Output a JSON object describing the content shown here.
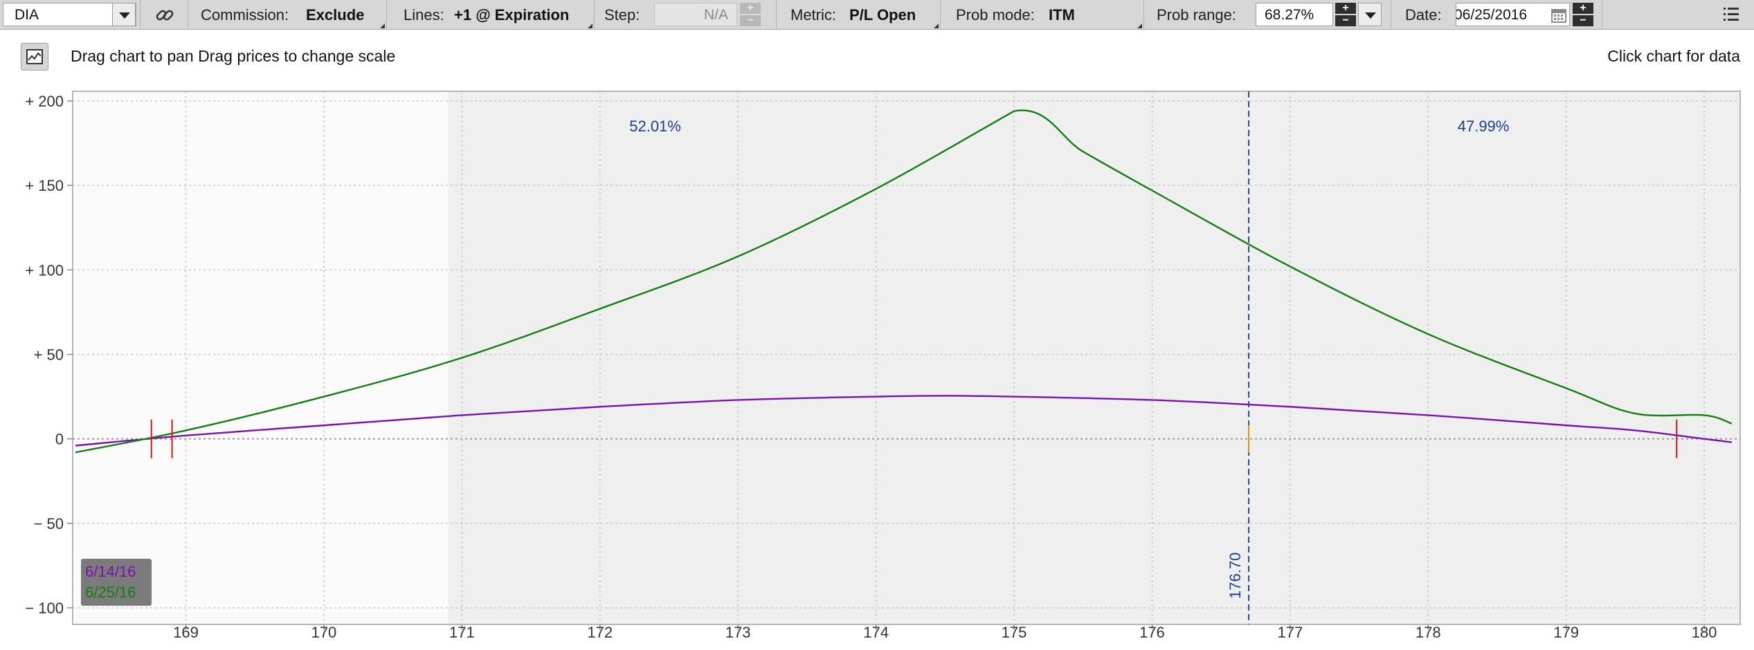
{
  "toolbar": {
    "symbol": "DIA",
    "commission_label": "Commission:",
    "commission_value": "Exclude",
    "lines_label": "Lines:",
    "lines_value": "+1 @ Expiration",
    "step_label": "Step:",
    "step_value": "N/A",
    "metric_label": "Metric:",
    "metric_value": "P/L Open",
    "prob_mode_label": "Prob mode:",
    "prob_mode_value": "ITM",
    "prob_range_label": "Prob range:",
    "prob_range_value": "68.27%",
    "date_label": "Date:",
    "date_value": "06/25/2016",
    "link_icon": "link-icon",
    "menu_icon": "hamburger-menu-icon",
    "calendar_icon": "calendar-icon"
  },
  "info": {
    "left_text": "Drag chart to pan Drag prices to change scale",
    "right_text": "Click chart for data",
    "chart_icon": "chart-type-icon"
  },
  "colors": {
    "series_6_14": "#7a10b4",
    "series_6_25": "#137d13",
    "price_line": "#1b4f8c",
    "breakeven_marker": "#e01010",
    "prob_region": "#efefef"
  },
  "chart_data": {
    "type": "line",
    "xlim": [
      168.2,
      180.2
    ],
    "ylim": [
      -100,
      200
    ],
    "x_ticks": [
      169,
      170,
      171,
      172,
      173,
      174,
      175,
      176,
      177,
      178,
      179,
      180
    ],
    "y_ticks": [
      200,
      150,
      100,
      50,
      0,
      -50,
      -100
    ],
    "y_tick_labels": [
      "+ 200",
      "+ 150",
      "+ 100",
      "+ 50",
      "0",
      "− 50",
      "− 100"
    ],
    "current_price": 176.7,
    "current_price_label": "176.70",
    "prob_region": [
      170.9,
      180.2
    ],
    "prob_left_label": "52.01%",
    "prob_right_label": "47.99%",
    "prob_left_x": 172.4,
    "prob_right_x": 178.4,
    "breakevens": [
      168.75,
      168.9,
      179.8
    ],
    "grid": true,
    "legend_placement": "bottom-left",
    "series": [
      {
        "name": "6/14/16",
        "color": "#7a10b4",
        "x": [
          168.2,
          169.0,
          170.0,
          171.0,
          172.0,
          173.0,
          174.0,
          174.5,
          175.0,
          176.0,
          177.0,
          178.0,
          179.0,
          179.5,
          180.0,
          180.2
        ],
        "y": [
          -4,
          2,
          8,
          14,
          19,
          23,
          25,
          25.5,
          25,
          23,
          19,
          14,
          8,
          5,
          0,
          -2
        ]
      },
      {
        "name": "6/25/16",
        "color": "#137d13",
        "x": [
          168.2,
          169.0,
          170.0,
          171.0,
          172.0,
          173.0,
          174.0,
          175.0,
          175.5,
          176.0,
          177.0,
          178.0,
          179.0,
          179.5,
          180.0,
          180.2
        ],
        "y": [
          -8,
          5,
          25,
          48,
          77,
          108,
          148,
          194,
          170,
          147,
          102,
          62,
          30,
          15,
          14,
          9
        ]
      }
    ]
  }
}
